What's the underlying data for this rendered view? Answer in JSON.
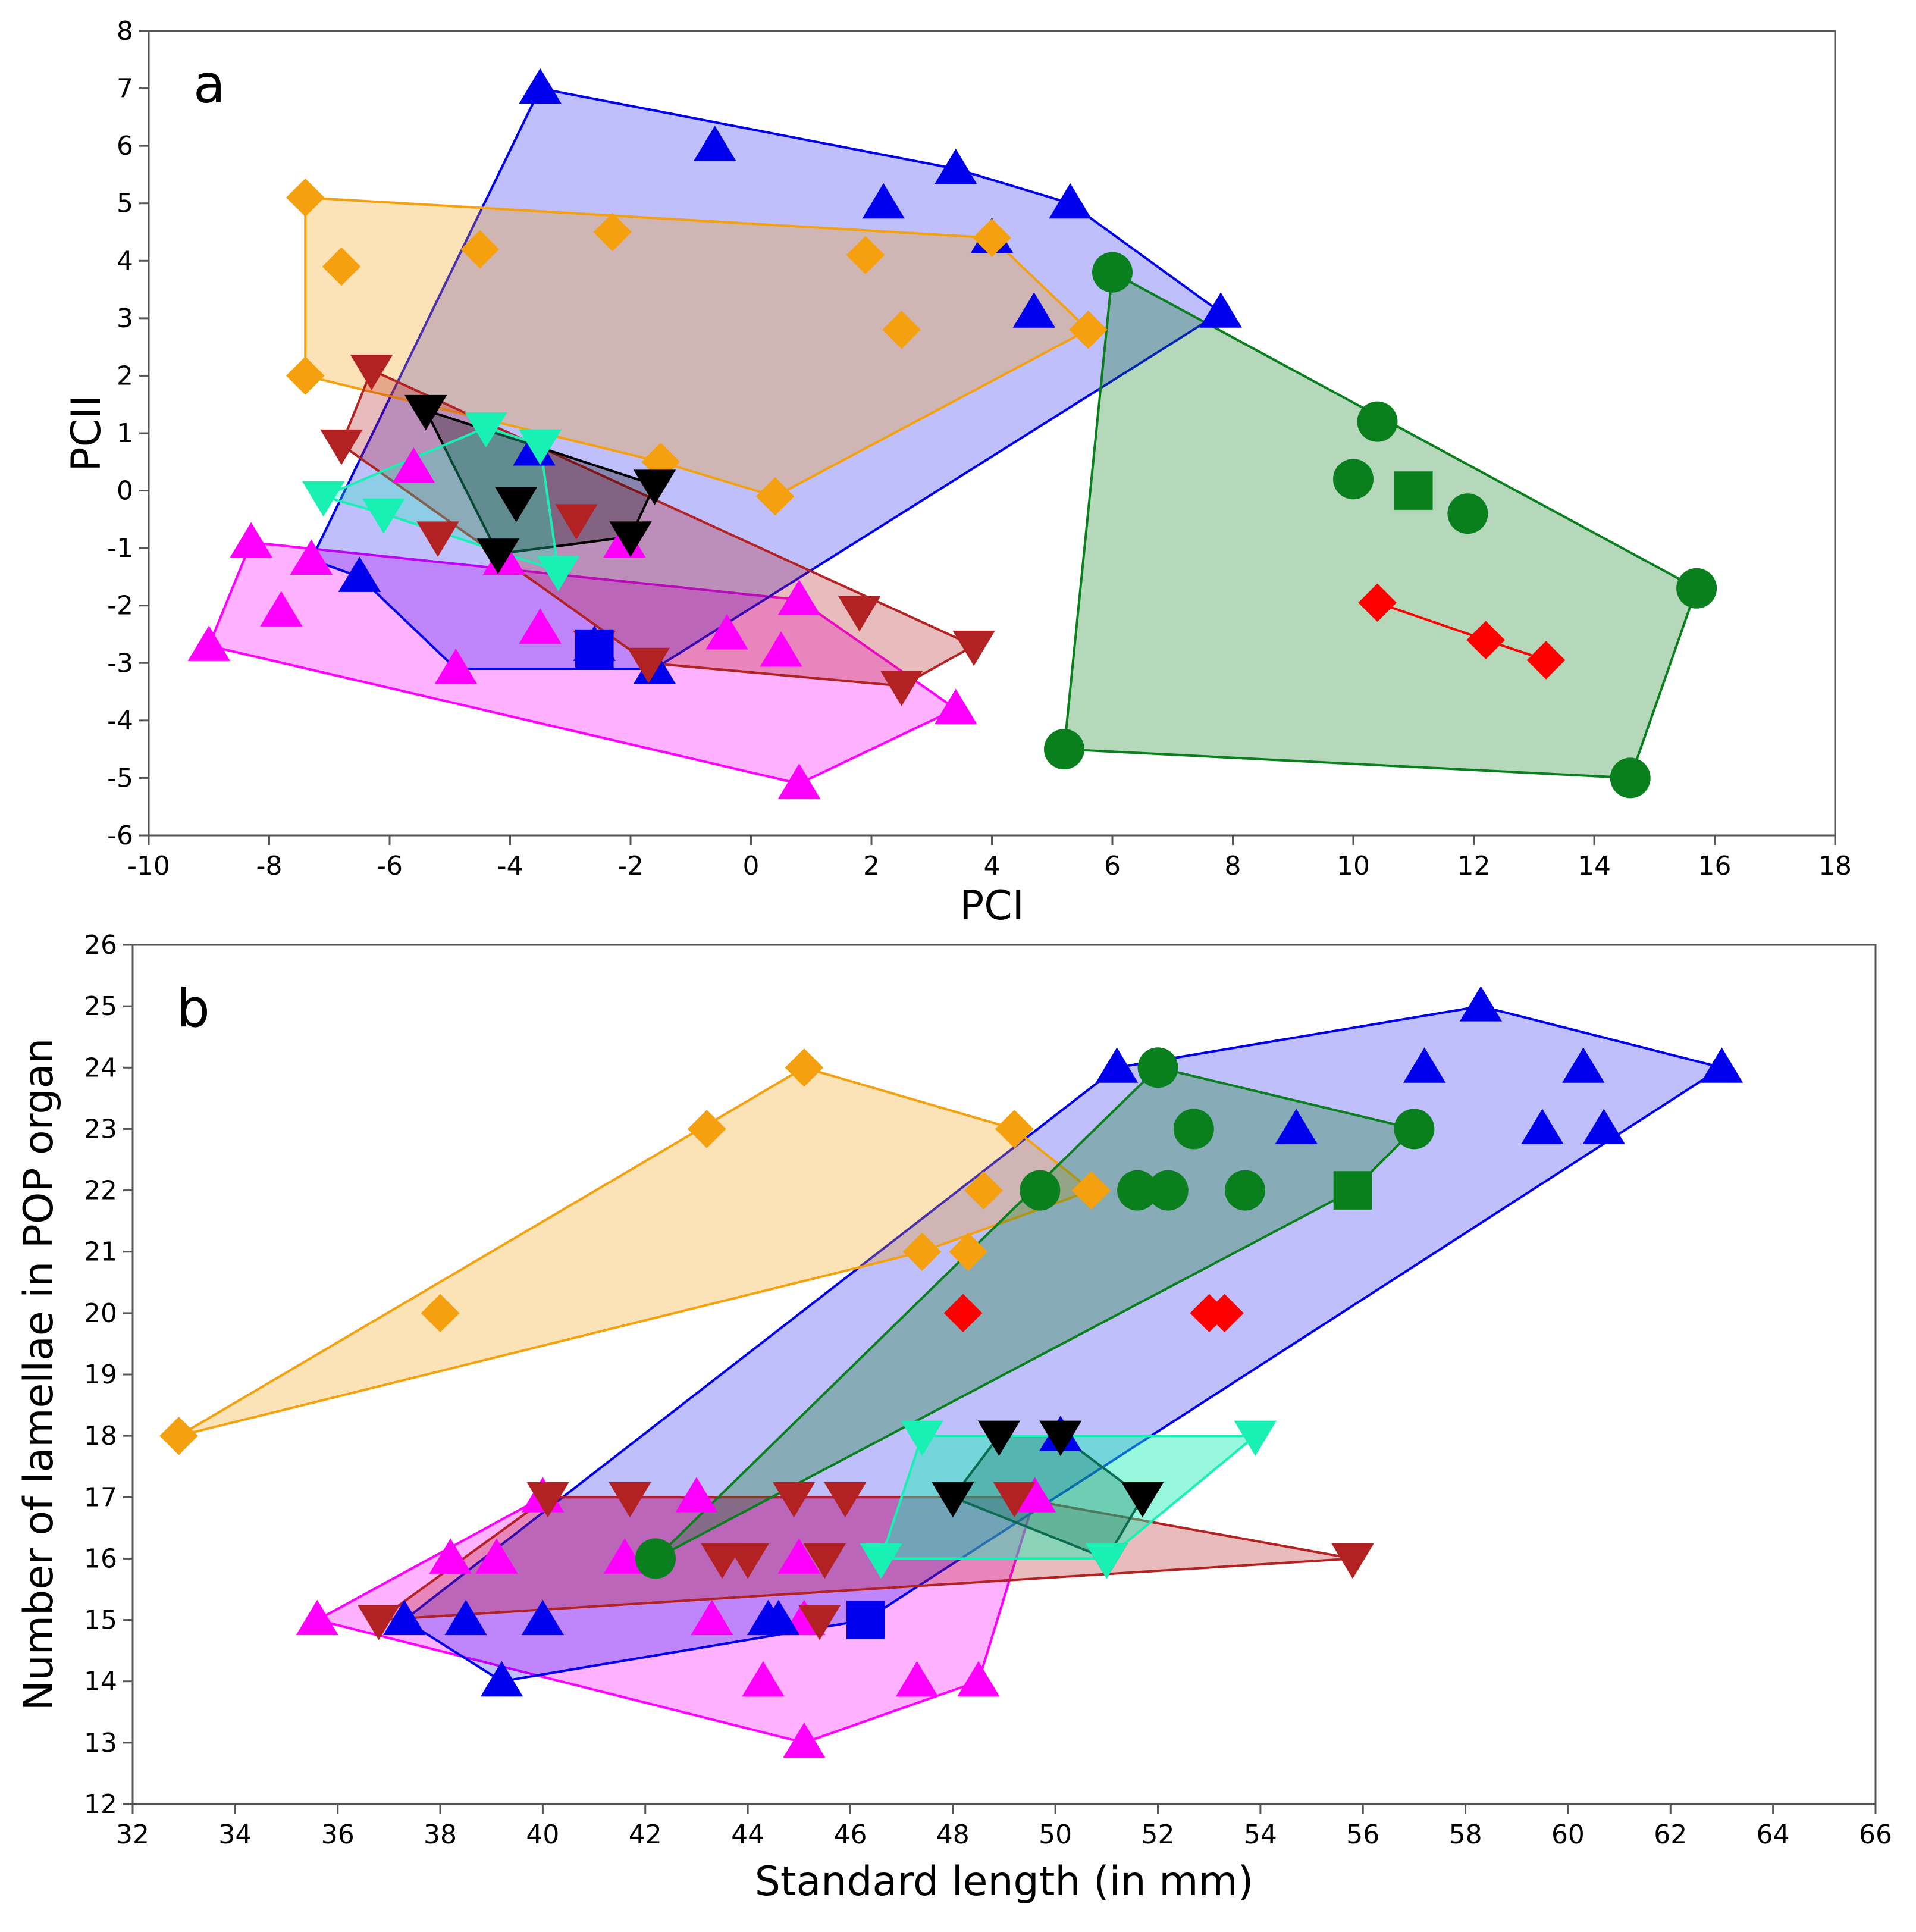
{
  "colors": {
    "blue": "#0000ee",
    "orange": "#f5a10f",
    "green": "#0a7f1e",
    "red": "#ff0000",
    "magenta": "#ff00ff",
    "darkred": "#b22222",
    "black": "#000000",
    "cyan": "#19f0b4"
  },
  "chart_data": [
    {
      "type": "scatter",
      "panel_label": "a",
      "xlabel": "PCI",
      "ylabel": "PCII",
      "xlim": [
        -10,
        18
      ],
      "ylim": [
        -6,
        8
      ],
      "xticks": [
        -10,
        -8,
        -6,
        -4,
        -2,
        0,
        2,
        4,
        6,
        8,
        10,
        12,
        14,
        16,
        18
      ],
      "yticks": [
        -6,
        -5,
        -4,
        -3,
        -2,
        -1,
        0,
        1,
        2,
        3,
        4,
        5,
        6,
        7,
        8
      ],
      "groups": [
        {
          "color": "magenta",
          "marker": "triangle-up",
          "alpha": 0.3,
          "hull": [
            [
              -9,
              -2.7
            ],
            [
              -8.3,
              -0.9
            ],
            [
              0.8,
              -1.9
            ],
            [
              3.4,
              -3.8
            ],
            [
              0.8,
              -5.1
            ]
          ],
          "points": [
            [
              -9,
              -2.7
            ],
            [
              -8.3,
              -0.9
            ],
            [
              -7.8,
              -2.1
            ],
            [
              -7.3,
              -1.2
            ],
            [
              -5.6,
              0.4
            ],
            [
              -4.9,
              -3.1
            ],
            [
              -3.5,
              -2.4
            ],
            [
              -2.1,
              -0.9
            ],
            [
              -0.4,
              -2.5
            ],
            [
              0.5,
              -2.8
            ],
            [
              0.8,
              -1.9
            ],
            [
              3.4,
              -3.8
            ],
            [
              0.8,
              -5.1
            ],
            [
              -4.1,
              -1.2
            ]
          ]
        },
        {
          "color": "blue",
          "marker": "triangle-up",
          "alpha": 0.25,
          "hull": [
            [
              -3.5,
              7
            ],
            [
              3.4,
              5.6
            ],
            [
              5.3,
              5
            ],
            [
              7.8,
              3.1
            ],
            [
              -1.6,
              -3.1
            ],
            [
              -4.9,
              -3.1
            ],
            [
              -6.5,
              -1.5
            ],
            [
              -7.3,
              -1.2
            ]
          ],
          "points": [
            [
              -3.5,
              7
            ],
            [
              -0.6,
              6
            ],
            [
              2.2,
              5
            ],
            [
              3.4,
              5.6
            ],
            [
              5.3,
              5
            ],
            [
              4,
              4.4
            ],
            [
              4.7,
              3.1
            ],
            [
              7.8,
              3.1
            ],
            [
              -3.6,
              0.7
            ],
            [
              -6.5,
              -1.5
            ],
            [
              -1.6,
              -3.1
            ],
            [
              -2.6,
              -2.7
            ]
          ]
        },
        {
          "color": "orange",
          "marker": "diamond",
          "alpha": 0.3,
          "hull": [
            [
              -7.4,
              5.1
            ],
            [
              4,
              4.4
            ],
            [
              5.6,
              2.8
            ],
            [
              0.4,
              -0.1
            ],
            [
              -1.5,
              0.5
            ],
            [
              -7.4,
              2
            ]
          ],
          "points": [
            [
              -7.4,
              5.1
            ],
            [
              -6.8,
              3.9
            ],
            [
              -4.5,
              4.2
            ],
            [
              -2.3,
              4.5
            ],
            [
              1.9,
              4.1
            ],
            [
              4,
              4.4
            ],
            [
              2.5,
              2.8
            ],
            [
              5.6,
              2.8
            ],
            [
              -7.4,
              2
            ],
            [
              -1.5,
              0.5
            ],
            [
              0.4,
              -0.1
            ]
          ]
        },
        {
          "color": "darkred",
          "marker": "triangle-down",
          "alpha": 0.3,
          "hull": [
            [
              -6.3,
              2.1
            ],
            [
              3.7,
              -2.7
            ],
            [
              2.5,
              -3.4
            ],
            [
              -1.7,
              -3.0
            ],
            [
              -6.8,
              0.8
            ]
          ],
          "points": [
            [
              -6.3,
              2.1
            ],
            [
              -6.8,
              0.8
            ],
            [
              -5.2,
              -0.8
            ],
            [
              -4.2,
              -1.1
            ],
            [
              -2.9,
              -0.5
            ],
            [
              -2,
              -0.8
            ],
            [
              -2.6,
              -2.7
            ],
            [
              -1.7,
              -3.0
            ],
            [
              1.8,
              -2.1
            ],
            [
              3.7,
              -2.7
            ],
            [
              2.5,
              -3.4
            ]
          ]
        },
        {
          "color": "black",
          "marker": "triangle-down",
          "alpha": 0.3,
          "hull": [
            [
              -5.4,
              1.4
            ],
            [
              -1.6,
              0.1
            ],
            [
              -2,
              -0.8
            ],
            [
              -4.2,
              -1.1
            ]
          ],
          "points": [
            [
              -5.4,
              1.4
            ],
            [
              -3.9,
              -0.2
            ],
            [
              -1.6,
              0.1
            ],
            [
              -2,
              -0.8
            ],
            [
              -4.2,
              -1.1
            ]
          ]
        },
        {
          "color": "cyan",
          "marker": "triangle-down",
          "alpha": 0.3,
          "hull": [
            [
              -4.4,
              1.1
            ],
            [
              -3.5,
              0.8
            ],
            [
              -3.2,
              -1.4
            ],
            [
              -6.1,
              -0.4
            ],
            [
              -7.1,
              -0.1
            ]
          ],
          "points": [
            [
              -4.4,
              1.1
            ],
            [
              -3.5,
              0.8
            ],
            [
              -7.1,
              -0.1
            ],
            [
              -6.1,
              -0.4
            ],
            [
              -3.2,
              -1.4
            ]
          ]
        },
        {
          "color": "green",
          "marker": "circle",
          "alpha": 0.3,
          "hull": [
            [
              6,
              3.8
            ],
            [
              15.7,
              -1.7
            ],
            [
              14.6,
              -5
            ],
            [
              5.2,
              -4.5
            ]
          ],
          "points": [
            [
              6,
              3.8
            ],
            [
              10.4,
              1.2
            ],
            [
              10,
              0.2
            ],
            [
              11.9,
              -0.4
            ],
            [
              15.7,
              -1.7
            ],
            [
              14.6,
              -5
            ],
            [
              5.2,
              -4.5
            ]
          ]
        },
        {
          "color": "red",
          "marker": "diamond",
          "alpha": 0,
          "line": true,
          "hull": [
            [
              10.4,
              -1.95
            ],
            [
              12.2,
              -2.6
            ],
            [
              13.2,
              -2.95
            ]
          ],
          "points": [
            [
              10.4,
              -1.95
            ],
            [
              12.2,
              -2.6
            ],
            [
              13.2,
              -2.95
            ]
          ]
        }
      ],
      "square_markers": [
        {
          "color": "green",
          "x": 11,
          "y": 0
        },
        {
          "color": "blue",
          "x": -2.6,
          "y": -2.75
        }
      ]
    },
    {
      "type": "scatter",
      "panel_label": "b",
      "xlabel": "Standard length (in mm)",
      "ylabel": "Number of lamellae in POP organ",
      "xlim": [
        32,
        66
      ],
      "ylim": [
        12,
        26
      ],
      "xticks": [
        32,
        34,
        36,
        38,
        40,
        42,
        44,
        46,
        48,
        50,
        52,
        54,
        56,
        58,
        60,
        62,
        64,
        66
      ],
      "yticks": [
        12,
        13,
        14,
        15,
        16,
        17,
        18,
        19,
        20,
        21,
        22,
        23,
        24,
        25,
        26
      ],
      "groups": [
        {
          "color": "magenta",
          "marker": "triangle-up",
          "alpha": 0.3,
          "hull": [
            [
              35.6,
              15
            ],
            [
              40,
              17
            ],
            [
              49.6,
              17
            ],
            [
              48.5,
              14
            ],
            [
              45.1,
              13
            ]
          ],
          "points": [
            [
              35.6,
              15
            ],
            [
              38.2,
              16
            ],
            [
              39.1,
              16
            ],
            [
              40,
              17
            ],
            [
              41.6,
              16
            ],
            [
              43,
              17
            ],
            [
              43.3,
              15
            ],
            [
              44.3,
              14
            ],
            [
              45,
              16
            ],
            [
              45.1,
              15
            ],
            [
              45.1,
              13
            ],
            [
              47.3,
              14
            ],
            [
              48.5,
              14
            ],
            [
              49.6,
              17
            ]
          ]
        },
        {
          "color": "blue",
          "marker": "triangle-up",
          "alpha": 0.25,
          "hull": [
            [
              51.2,
              24
            ],
            [
              58.3,
              25
            ],
            [
              63,
              24
            ],
            [
              46.3,
              15
            ],
            [
              39.2,
              14
            ],
            [
              37.3,
              15
            ]
          ],
          "points": [
            [
              51.2,
              24
            ],
            [
              58.3,
              25
            ],
            [
              57.2,
              24
            ],
            [
              60.3,
              24
            ],
            [
              63,
              24
            ],
            [
              54.7,
              23
            ],
            [
              59.5,
              23
            ],
            [
              60.7,
              23
            ],
            [
              50.1,
              18
            ],
            [
              37.3,
              15
            ],
            [
              38.5,
              15
            ],
            [
              40,
              15
            ],
            [
              44.4,
              15
            ],
            [
              44.6,
              15
            ],
            [
              39.2,
              14
            ]
          ]
        },
        {
          "color": "orange",
          "marker": "diamond",
          "alpha": 0.3,
          "hull": [
            [
              45.1,
              24
            ],
            [
              49.2,
              23
            ],
            [
              50.7,
              22
            ],
            [
              47.4,
              21
            ],
            [
              32.9,
              18
            ]
          ],
          "points": [
            [
              45.1,
              24
            ],
            [
              43.2,
              23
            ],
            [
              49.2,
              23
            ],
            [
              48.6,
              22
            ],
            [
              50.7,
              22
            ],
            [
              47.4,
              21
            ],
            [
              48.3,
              21
            ],
            [
              38,
              20
            ],
            [
              32.9,
              18
            ]
          ]
        },
        {
          "color": "darkred",
          "marker": "triangle-down",
          "alpha": 0.3,
          "hull": [
            [
              40.1,
              17
            ],
            [
              49.2,
              17
            ],
            [
              55.8,
              16
            ],
            [
              36.8,
              15
            ]
          ],
          "points": [
            [
              36.8,
              15
            ],
            [
              40.1,
              17
            ],
            [
              41.7,
              17
            ],
            [
              44.9,
              17
            ],
            [
              45.9,
              17
            ],
            [
              49.2,
              17
            ],
            [
              43.5,
              16
            ],
            [
              44,
              16
            ],
            [
              45.5,
              16
            ],
            [
              45.4,
              15
            ],
            [
              55.8,
              16
            ]
          ]
        },
        {
          "color": "black",
          "marker": "triangle-down",
          "alpha": 0.3,
          "hull": [
            [
              48.9,
              18
            ],
            [
              50.1,
              18
            ],
            [
              51.7,
              17
            ],
            [
              51,
              16
            ],
            [
              48,
              17
            ]
          ],
          "points": [
            [
              48.9,
              18
            ],
            [
              50.1,
              18
            ],
            [
              48,
              17
            ],
            [
              51.7,
              17
            ],
            [
              51,
              16
            ]
          ]
        },
        {
          "color": "cyan",
          "marker": "triangle-down",
          "alpha": 0.45,
          "hull": [
            [
              47.4,
              18
            ],
            [
              53.9,
              18
            ],
            [
              51,
              16
            ],
            [
              46.6,
              16
            ]
          ],
          "points": [
            [
              47.4,
              18
            ],
            [
              53.9,
              18
            ],
            [
              46.6,
              16
            ],
            [
              51,
              16
            ]
          ]
        },
        {
          "color": "green",
          "marker": "circle",
          "alpha": 0.3,
          "hull": [
            [
              52,
              24
            ],
            [
              57,
              23
            ],
            [
              55.8,
              22
            ],
            [
              42.2,
              16
            ]
          ],
          "points": [
            [
              52,
              24
            ],
            [
              52.7,
              23
            ],
            [
              57,
              23
            ],
            [
              49.7,
              22
            ],
            [
              51.6,
              22
            ],
            [
              52.2,
              22
            ],
            [
              53.7,
              22
            ],
            [
              42.2,
              16
            ]
          ]
        },
        {
          "color": "red",
          "marker": "diamond",
          "alpha": 0,
          "line": false,
          "hull": [],
          "points": [
            [
              48.2,
              20
            ],
            [
              53,
              20
            ],
            [
              53.3,
              20
            ]
          ]
        }
      ],
      "square_markers": [
        {
          "color": "green",
          "x": 55.8,
          "y": 22
        },
        {
          "color": "blue",
          "x": 46.3,
          "y": 15
        }
      ]
    }
  ]
}
